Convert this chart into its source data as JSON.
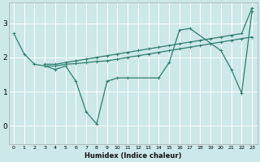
{
  "xlabel": "Humidex (Indice chaleur)",
  "bg_color": "#cce8e8",
  "grid_color": "#ffffff",
  "line_color": "#2e7d6e",
  "xlim": [
    -0.5,
    23.5
  ],
  "ylim": [
    -0.55,
    3.6
  ],
  "xticks": [
    0,
    1,
    2,
    3,
    4,
    5,
    6,
    7,
    8,
    9,
    10,
    11,
    12,
    13,
    14,
    15,
    16,
    17,
    18,
    19,
    20,
    21,
    22,
    23
  ],
  "yticks": [
    0,
    1,
    2,
    3
  ],
  "series": [
    {
      "x": [
        0,
        1,
        2,
        3,
        4,
        5,
        6,
        7,
        8,
        9,
        10,
        11,
        14,
        15,
        16,
        17,
        20,
        21,
        22,
        23
      ],
      "y": [
        2.7,
        2.1,
        1.8,
        1.75,
        1.65,
        1.75,
        1.3,
        0.4,
        0.05,
        1.3,
        1.4,
        1.4,
        1.4,
        1.85,
        2.8,
        2.85,
        2.2,
        1.65,
        0.95,
        3.35
      ]
    },
    {
      "x": [
        3,
        4,
        5,
        6,
        7,
        8,
        9,
        10,
        11,
        12,
        13,
        14,
        15,
        16,
        17,
        18,
        19,
        20,
        21,
        22,
        23
      ],
      "y": [
        1.8,
        1.8,
        1.85,
        1.9,
        1.95,
        2.0,
        2.05,
        2.1,
        2.15,
        2.2,
        2.25,
        2.3,
        2.35,
        2.4,
        2.45,
        2.5,
        2.55,
        2.6,
        2.65,
        2.7,
        3.45
      ]
    },
    {
      "x": [
        3,
        4,
        5,
        6,
        7,
        8,
        9,
        10,
        11,
        12,
        13,
        14,
        15,
        16,
        17,
        18,
        19,
        20,
        21,
        22,
        23
      ],
      "y": [
        1.75,
        1.75,
        1.8,
        1.82,
        1.85,
        1.88,
        1.9,
        1.95,
        2.0,
        2.05,
        2.1,
        2.15,
        2.2,
        2.25,
        2.3,
        2.35,
        2.4,
        2.45,
        2.5,
        2.55,
        2.6
      ]
    }
  ],
  "marker": "+"
}
